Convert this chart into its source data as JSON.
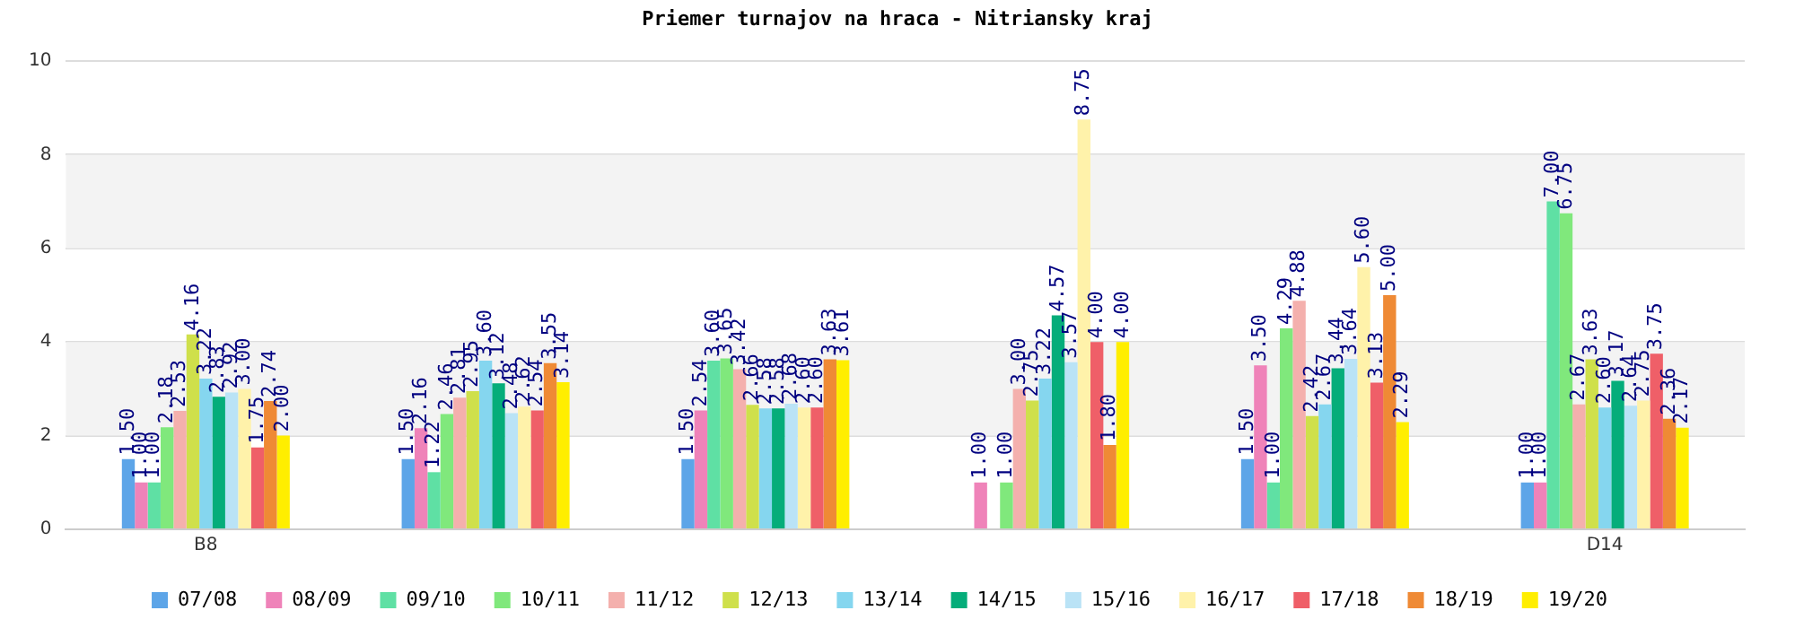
{
  "chart_data": {
    "type": "bar",
    "title": "Priemer turnajov na hraca - Nitriansky kraj",
    "categories": [
      "B8",
      null,
      null,
      null,
      null,
      "D14"
    ],
    "ylim": [
      0,
      10
    ],
    "yticks": [
      0,
      2,
      4,
      6,
      8,
      10
    ],
    "grid": "y",
    "legend": "bottom",
    "series": [
      {
        "name": "07/08",
        "color": "#5da5e8",
        "values": [
          1.5,
          1.5,
          1.5,
          null,
          1.5,
          1.0
        ],
        "value_labels": [
          "1.50",
          "1.50",
          "1.50",
          null,
          "1.50",
          "1.00"
        ]
      },
      {
        "name": "08/09",
        "color": "#ef83b9",
        "values": [
          1.0,
          2.16,
          2.54,
          1.0,
          3.5,
          1.0
        ],
        "value_labels": [
          "1.00",
          "2.16",
          "2.54",
          "1.00",
          "3.50",
          "1.00"
        ]
      },
      {
        "name": "09/10",
        "color": "#5fe0a4",
        "values": [
          1.0,
          1.22,
          3.6,
          null,
          1.0,
          7.0
        ],
        "value_labels": [
          "1.00",
          "1.22",
          "3.60",
          null,
          "1.00",
          "7.00"
        ]
      },
      {
        "name": "10/11",
        "color": "#80e87c",
        "values": [
          2.18,
          2.46,
          3.65,
          1.0,
          4.29,
          6.75
        ],
        "value_labels": [
          "2.18",
          "2.46",
          "3.65",
          "1.00",
          "4.29",
          "6.75"
        ]
      },
      {
        "name": "11/12",
        "color": "#f4b0ad",
        "values": [
          2.53,
          2.81,
          3.42,
          3.0,
          4.88,
          2.67
        ],
        "value_labels": [
          "2.53",
          "2.81",
          "3.42",
          "3.00",
          "4.88",
          "2.67"
        ]
      },
      {
        "name": "12/13",
        "color": "#cfe04b",
        "values": [
          4.16,
          2.95,
          2.66,
          2.75,
          2.42,
          3.63
        ],
        "value_labels": [
          "4.16",
          "2.95",
          "2.66",
          "2.75",
          "2.42",
          "3.63"
        ]
      },
      {
        "name": "13/14",
        "color": "#85d6ef",
        "values": [
          3.22,
          3.6,
          2.58,
          3.22,
          2.67,
          2.6
        ],
        "value_labels": [
          "3.22",
          "3.60",
          "2.58",
          "3.22",
          "2.67",
          "2.60"
        ]
      },
      {
        "name": "14/15",
        "color": "#05ad7a",
        "values": [
          2.83,
          3.12,
          2.58,
          4.57,
          3.44,
          3.17
        ],
        "value_labels": [
          "2.83",
          "3.12",
          "2.58",
          "4.57",
          "3.44",
          "3.17"
        ]
      },
      {
        "name": "15/16",
        "color": "#bae3f6",
        "values": [
          2.92,
          2.48,
          2.68,
          3.57,
          3.64,
          2.64
        ],
        "value_labels": [
          "2.92",
          "2.48",
          "2.68",
          "3.57",
          "3.64",
          "2.64"
        ]
      },
      {
        "name": "16/17",
        "color": "#fff2aa",
        "values": [
          3.0,
          2.62,
          2.6,
          8.75,
          5.6,
          2.75
        ],
        "value_labels": [
          "3.00",
          "2.62",
          "2.60",
          "8.75",
          "5.60",
          "2.75"
        ]
      },
      {
        "name": "17/18",
        "color": "#ef5f68",
        "values": [
          1.75,
          2.54,
          2.6,
          4.0,
          3.13,
          3.75
        ],
        "value_labels": [
          "1.75",
          "2.54",
          "2.60",
          "4.00",
          "3.13",
          "3.75"
        ]
      },
      {
        "name": "18/19",
        "color": "#ef8a35",
        "values": [
          2.74,
          3.55,
          3.63,
          1.8,
          5.0,
          2.36
        ],
        "value_labels": [
          "2.74",
          "3.55",
          "3.63",
          "1.80",
          "5.00",
          "2.36"
        ]
      },
      {
        "name": "19/20",
        "color": "#ffee00",
        "values": [
          2.0,
          3.14,
          3.61,
          4.0,
          2.29,
          2.17
        ],
        "value_labels": [
          "2.00",
          "3.14",
          "3.61",
          "4.00",
          "2.29",
          "2.17"
        ]
      }
    ]
  }
}
